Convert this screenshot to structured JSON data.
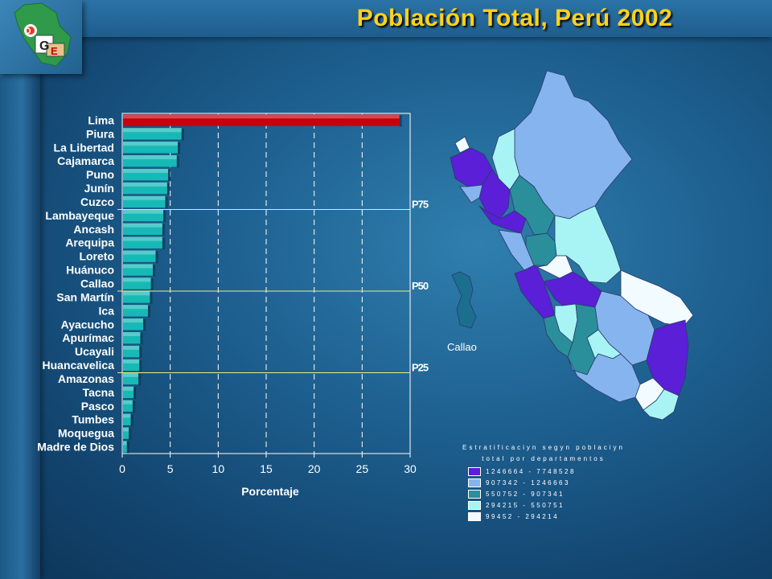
{
  "slide": {
    "title": "Población Total, Perú 2002",
    "logo_letters": [
      "O",
      "G",
      "E"
    ]
  },
  "map": {
    "inset_label": "Callao",
    "legend_title_line1": "Estratificaciyn segyn poblaciyn",
    "legend_title_line2": "total por departamentos",
    "legend": [
      {
        "label": "1246664 - 7748528",
        "color": "#5a1fd6"
      },
      {
        "label": "907342 - 1246663",
        "color": "#86b4ee"
      },
      {
        "label": "550752 - 907341",
        "color": "#2a8f9a"
      },
      {
        "label": "294215 - 550751",
        "color": "#a8f4f4"
      },
      {
        "label": "99452 - 294214",
        "color": "#f2fbff"
      }
    ]
  },
  "chart_data": {
    "type": "bar",
    "orientation": "horizontal",
    "categories": [
      "Lima",
      "Piura",
      "La Libertad",
      "Cajamarca",
      "Puno",
      "Junín",
      "Cuzco",
      "Lambayeque",
      "Ancash",
      "Arequipa",
      "Loreto",
      "Huánuco",
      "Callao",
      "San Martín",
      "Ica",
      "Ayacucho",
      "Apurímac",
      "Ucayali",
      "Huancavelica",
      "Amazonas",
      "Tacna",
      "Pasco",
      "Tumbes",
      "Moquegua",
      "Madre de Dios"
    ],
    "values": [
      28.8,
      6.1,
      5.7,
      5.6,
      4.7,
      4.6,
      4.4,
      4.2,
      4.1,
      4.1,
      3.4,
      3.1,
      2.9,
      2.8,
      2.6,
      2.1,
      1.8,
      1.7,
      1.7,
      1.6,
      1.1,
      1.0,
      0.8,
      0.6,
      0.4
    ],
    "highlight_color": "#c8000e",
    "bar_color": "#17b9b6",
    "xlabel": "Porcentaje",
    "xlim": [
      0,
      30
    ],
    "xticks": [
      "0",
      "5",
      "10",
      "15",
      "20",
      "25",
      "30"
    ],
    "gridlines": "vertical dashed",
    "percentile_lines": [
      {
        "label": "P75",
        "after_index": 6
      },
      {
        "label": "P50",
        "after_index": 12
      },
      {
        "label": "P25",
        "after_index": 18
      }
    ]
  }
}
